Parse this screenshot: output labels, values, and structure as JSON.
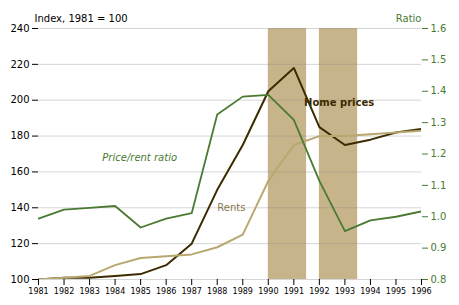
{
  "chart_data": {
    "type": "line",
    "x": [
      1981,
      1982,
      1983,
      1984,
      1985,
      1986,
      1987,
      1988,
      1989,
      1990,
      1991,
      1992,
      1993,
      1994,
      1995,
      1996
    ],
    "series": [
      {
        "name": "Home prices",
        "color": "#3d2b00",
        "values": [
          100,
          101,
          101,
          102,
          103,
          108,
          120,
          150,
          175,
          205,
          218,
          185,
          175,
          178,
          182,
          184
        ]
      },
      {
        "name": "Rents",
        "color": "#b8a870",
        "values": [
          100,
          101,
          102,
          108,
          112,
          113,
          114,
          118,
          125,
          155,
          175,
          180,
          180,
          181,
          182,
          183
        ]
      },
      {
        "name": "Price/rent ratio",
        "color": "#4a7a32",
        "values": [
          134,
          139,
          140,
          141,
          129,
          134,
          137,
          192,
          202,
          203,
          189,
          155,
          127,
          133,
          135,
          138
        ]
      }
    ],
    "xlim": [
      1981,
      1996
    ],
    "xticks": [
      1981,
      1982,
      1983,
      1984,
      1985,
      1986,
      1987,
      1988,
      1989,
      1990,
      1991,
      1992,
      1993,
      1994,
      1995,
      1996
    ],
    "ylabel": "Index, 1981 = 100",
    "ylim": [
      100,
      240
    ],
    "yticks": [
      100,
      120,
      140,
      160,
      180,
      200,
      220,
      240
    ],
    "y2label": "Ratio",
    "y2lim": [
      0.8,
      1.6
    ],
    "y2ticks": [
      0.8,
      0.9,
      {
        "value": 1,
        "label": "1.0"
      },
      1.1,
      1.2,
      1.3,
      1.4,
      1.5,
      1.6
    ],
    "grid": true,
    "shaded_spans": [
      {
        "x1": 1990,
        "x2": 1991.5
      },
      {
        "x1": 1992,
        "x2": 1993.5
      }
    ],
    "shade_color": "#c8b48a",
    "annotations": [
      {
        "text": "Price/rent ratio",
        "x": 1983.5,
        "y": 166,
        "color": "#4a7a32"
      },
      {
        "text": "Home prices",
        "x": 1991.4,
        "y": 197,
        "color": "#3d2b00"
      },
      {
        "text": "Rents",
        "x": 1988.0,
        "y": 138,
        "color": "#8a7850"
      }
    ]
  }
}
